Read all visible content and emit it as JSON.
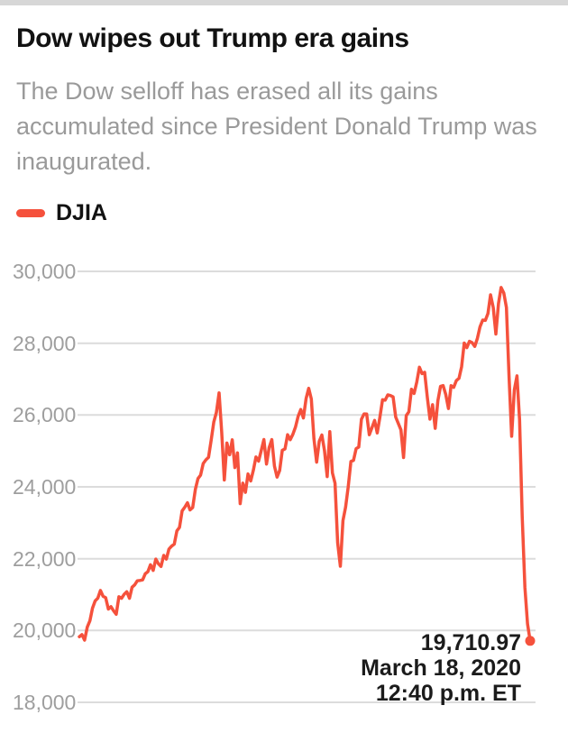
{
  "header": {
    "title": "Dow wipes out Trump era gains",
    "subtitle": "The Dow selloff has erased all its gains accumulated since President Donald Trump was inaugurated."
  },
  "chart_data": {
    "type": "line",
    "title": "Dow wipes out Trump era gains",
    "series_name": "DJIA",
    "color": "#f5513c",
    "grid_color": "#dcdcdc",
    "ylim": [
      18000,
      30000
    ],
    "grid": true,
    "legend_position": "top-left",
    "yticks": [
      {
        "value": 30000,
        "label": "30,000"
      },
      {
        "value": 28000,
        "label": "28,000"
      },
      {
        "value": 26000,
        "label": "26,000"
      },
      {
        "value": 24000,
        "label": "24,000"
      },
      {
        "value": 22000,
        "label": "22,000"
      },
      {
        "value": 20000,
        "label": "20,000"
      },
      {
        "value": 18000,
        "label": "18,000"
      }
    ],
    "values": [
      19827,
      19885,
      19732,
      20094,
      20269,
      20624,
      20821,
      20902,
      21115,
      20954,
      20914,
      20596,
      20663,
      20548,
      20453,
      20940,
      20897,
      21007,
      21080,
      20897,
      21206,
      21272,
      21384,
      21395,
      21410,
      21580,
      21638,
      21830,
      21674,
      21988,
      21858,
      21784,
      22093,
      21988,
      22268,
      22349,
      22405,
      22774,
      22872,
      23329,
      23434,
      23558,
      23358,
      23422,
      23931,
      24232,
      24329,
      24651,
      24754,
      24824,
      25296,
      25803,
      26072,
      26617,
      25521,
      24191,
      25219,
      24893,
      25310,
      24538,
      24947,
      23533,
      24103,
      23848,
      24360,
      24163,
      24463,
      24831,
      24715,
      25013,
      25317,
      24635,
      25090,
      25316,
      24581,
      24271,
      24456,
      25019,
      25058,
      25451,
      25313,
      25462,
      25669,
      25965,
      26155,
      25917,
      26458,
      26743,
      26447,
      25340,
      24688,
      25270,
      25444,
      25011,
      24286,
      25538,
      24389,
      24101,
      22445,
      21792,
      23062,
      23433,
      23996,
      24706,
      24737,
      25064,
      25106,
      25883,
      26032,
      26026,
      25451,
      25650,
      25849,
      25502,
      25929,
      26425,
      26412,
      26560,
      26543,
      26505,
      25942,
      25764,
      25586,
      24815,
      25984,
      26090,
      26720,
      26600,
      26922,
      27332,
      27154,
      27192,
      26485,
      25886,
      26287,
      25629,
      26403,
      26797,
      26820,
      26574,
      26182,
      26817,
      26770,
      26958,
      27022,
      27347,
      28005,
      27876,
      28051,
      28015,
      27911,
      28135,
      28455,
      28645,
      28635,
      28824,
      29348,
      28990,
      28256,
      29103,
      29551,
      29398,
      28993,
      27081,
      25409,
      26703,
      27091,
      25865,
      23185,
      21200,
      20188,
      19710.97
    ],
    "end_point": {
      "value": 19710.97,
      "label": "19,710.97",
      "date": "March 18, 2020",
      "time": "12:40 p.m. ET"
    }
  }
}
